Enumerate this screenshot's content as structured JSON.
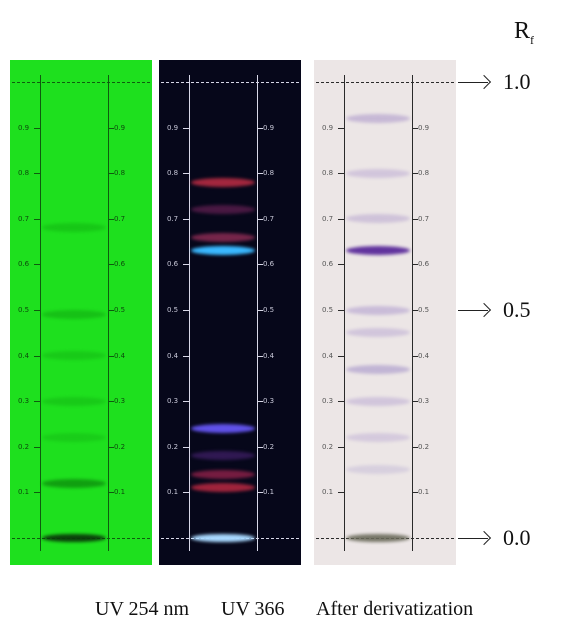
{
  "rf_header": {
    "main": "R",
    "sub": "f"
  },
  "rf_markers": [
    {
      "label": "1.0",
      "rf": 1.0
    },
    {
      "label": "0.5",
      "rf": 0.5
    },
    {
      "label": "0.0",
      "rf": 0.0
    }
  ],
  "tick_labels": [
    "0.9",
    "0.8",
    "0.7",
    "0.6",
    "0.5",
    "0.4",
    "0.3",
    "0.2",
    "0.1"
  ],
  "captions": [
    "UV 254 nm",
    "UV 366",
    "After derivatization"
  ],
  "panels": [
    {
      "id": "uv254",
      "background": "#1ee01e",
      "line_color": "#0f5a0f",
      "label_color": "#0d4a0d",
      "bands": [
        {
          "rf": 0.68,
          "color": "#11b411",
          "opacity": 0.55
        },
        {
          "rf": 0.49,
          "color": "#10a810",
          "opacity": 0.55
        },
        {
          "rf": 0.4,
          "color": "#12b012",
          "opacity": 0.45
        },
        {
          "rf": 0.3,
          "color": "#12b012",
          "opacity": 0.45
        },
        {
          "rf": 0.22,
          "color": "#12b012",
          "opacity": 0.4
        },
        {
          "rf": 0.12,
          "color": "#0c8a0c",
          "opacity": 0.75
        },
        {
          "rf": 0.0,
          "color": "#0a3a0a",
          "opacity": 0.95
        }
      ]
    },
    {
      "id": "uv366",
      "background": "#06071a",
      "line_color": "#d8d8e8",
      "label_color": "#c8c8d8",
      "bands": [
        {
          "rf": 0.78,
          "color": "#d8324a",
          "opacity": 0.75
        },
        {
          "rf": 0.72,
          "color": "#8a2a6a",
          "opacity": 0.5
        },
        {
          "rf": 0.66,
          "color": "#c03a6a",
          "opacity": 0.6
        },
        {
          "rf": 0.63,
          "color": "#3ab8ff",
          "opacity": 1.0
        },
        {
          "rf": 0.24,
          "color": "#6a5aff",
          "opacity": 0.9
        },
        {
          "rf": 0.18,
          "color": "#5a2a8a",
          "opacity": 0.5
        },
        {
          "rf": 0.14,
          "color": "#c02a5a",
          "opacity": 0.6
        },
        {
          "rf": 0.11,
          "color": "#e0304a",
          "opacity": 0.7
        },
        {
          "rf": 0.0,
          "color": "#a8d8ff",
          "opacity": 1.0
        }
      ]
    },
    {
      "id": "deriv",
      "background": "#ece6e6",
      "line_color": "#2a2a2a",
      "label_color": "#555555",
      "bands": [
        {
          "rf": 0.92,
          "color": "#9a82c2",
          "opacity": 0.45
        },
        {
          "rf": 0.8,
          "color": "#a28ac8",
          "opacity": 0.35
        },
        {
          "rf": 0.7,
          "color": "#9a82c2",
          "opacity": 0.35
        },
        {
          "rf": 0.63,
          "color": "#5a2a9a",
          "opacity": 0.95
        },
        {
          "rf": 0.5,
          "color": "#a08ac8",
          "opacity": 0.45
        },
        {
          "rf": 0.45,
          "color": "#a08ac8",
          "opacity": 0.35
        },
        {
          "rf": 0.37,
          "color": "#8e7ac0",
          "opacity": 0.45
        },
        {
          "rf": 0.3,
          "color": "#a08ac8",
          "opacity": 0.35
        },
        {
          "rf": 0.22,
          "color": "#a08ac8",
          "opacity": 0.3
        },
        {
          "rf": 0.15,
          "color": "#a89ccc",
          "opacity": 0.3
        },
        {
          "rf": 0.0,
          "color": "#6a6a5a",
          "opacity": 0.9
        }
      ]
    }
  ]
}
